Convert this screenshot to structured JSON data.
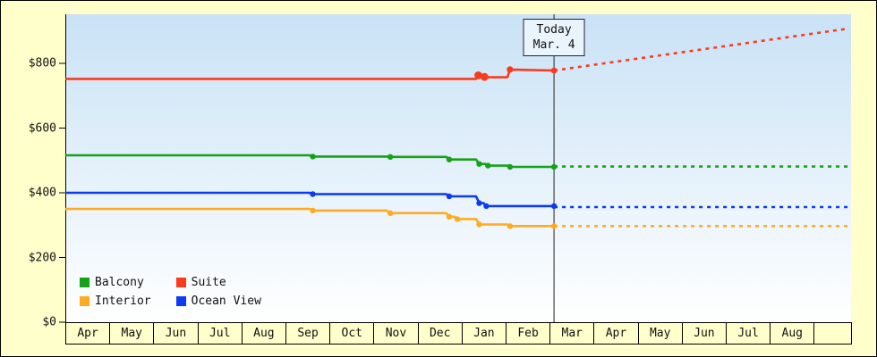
{
  "colors": {
    "page_background": "#ffffcc",
    "plot_gradient_top": "#c9e2f6",
    "plot_gradient_bottom": "#ffffff",
    "axis": "#000000",
    "today_line": "#444444",
    "today_box_background": "#e9f4fd"
  },
  "chart_data": {
    "type": "line",
    "title": "",
    "xlabel": "",
    "ylabel": "",
    "grid": false,
    "legend_position": "bottom-left",
    "y_axis": {
      "ticks": [
        {
          "label": "$0",
          "value": 0
        },
        {
          "label": "$200",
          "value": 200
        },
        {
          "label": "$400",
          "value": 400
        },
        {
          "label": "$600",
          "value": 600
        },
        {
          "label": "$800",
          "value": 800
        }
      ],
      "range": [
        0,
        952
      ]
    },
    "x_axis": {
      "months": [
        "Apr",
        "May",
        "Jun",
        "Jul",
        "Aug",
        "Sep",
        "Oct",
        "Nov",
        "Dec",
        "Jan",
        "Feb",
        "Mar",
        "Apr",
        "May",
        "Jun",
        "Jul",
        "Aug"
      ]
    },
    "today": {
      "month_position": 11.1,
      "label_line1": "Today",
      "label_line2": "Mar. 4"
    },
    "series": [
      {
        "name": "Balcony",
        "color": "#16a216",
        "history": [
          [
            0,
            516
          ],
          [
            5.55,
            516
          ],
          [
            5.62,
            512
          ],
          [
            7.3,
            512
          ],
          [
            7.38,
            511
          ],
          [
            8.65,
            511
          ],
          [
            8.72,
            503
          ],
          [
            9.33,
            503
          ],
          [
            9.4,
            489
          ],
          [
            9.54,
            489
          ],
          [
            9.6,
            484
          ],
          [
            10.04,
            484
          ],
          [
            10.1,
            480
          ],
          [
            11.1,
            480
          ]
        ],
        "markers": [
          [
            5.62,
            512
          ],
          [
            7.38,
            511
          ],
          [
            8.72,
            503
          ],
          [
            9.4,
            489
          ],
          [
            9.6,
            484
          ],
          [
            10.1,
            480
          ],
          [
            11.1,
            480
          ]
        ],
        "forecast": [
          [
            11.1,
            481
          ],
          [
            17.8,
            481
          ]
        ]
      },
      {
        "name": "Suite",
        "color": "#fb3a1c",
        "history": [
          [
            0,
            752
          ],
          [
            9.33,
            752
          ],
          [
            9.38,
            764
          ],
          [
            9.5,
            764
          ],
          [
            9.56,
            757
          ],
          [
            10.04,
            757
          ],
          [
            10.1,
            781
          ],
          [
            11.1,
            778
          ]
        ],
        "markers": [
          [
            9.38,
            763,
            4.4
          ],
          [
            9.52,
            758,
            4.4
          ],
          [
            10.1,
            781,
            3.6
          ],
          [
            11.1,
            778,
            3.4
          ]
        ],
        "forecast": [
          [
            11.1,
            778
          ],
          [
            17.8,
            908
          ]
        ]
      },
      {
        "name": "Interior",
        "color": "#ffab1f",
        "history": [
          [
            0,
            350
          ],
          [
            5.55,
            350
          ],
          [
            5.62,
            345
          ],
          [
            7.3,
            345
          ],
          [
            7.38,
            337
          ],
          [
            8.65,
            337
          ],
          [
            8.72,
            326
          ],
          [
            8.84,
            326
          ],
          [
            8.9,
            319
          ],
          [
            9.33,
            319
          ],
          [
            9.4,
            302
          ],
          [
            10.04,
            302
          ],
          [
            10.1,
            297
          ],
          [
            11.1,
            297
          ]
        ],
        "markers": [
          [
            5.62,
            345
          ],
          [
            7.38,
            337
          ],
          [
            8.72,
            326
          ],
          [
            8.9,
            319
          ],
          [
            9.4,
            302
          ],
          [
            10.1,
            297
          ],
          [
            11.1,
            297
          ]
        ],
        "forecast": [
          [
            11.1,
            297
          ],
          [
            17.8,
            297
          ]
        ]
      },
      {
        "name": "Ocean View",
        "color": "#0c3bf0",
        "history": [
          [
            0,
            400
          ],
          [
            5.55,
            400
          ],
          [
            5.62,
            396
          ],
          [
            8.65,
            396
          ],
          [
            8.72,
            389
          ],
          [
            9.33,
            389
          ],
          [
            9.4,
            368
          ],
          [
            9.5,
            368
          ],
          [
            9.56,
            359
          ],
          [
            11.1,
            359
          ]
        ],
        "markers": [
          [
            5.62,
            396
          ],
          [
            8.72,
            389
          ],
          [
            9.4,
            368
          ],
          [
            9.56,
            359
          ],
          [
            11.1,
            359
          ]
        ],
        "forecast": [
          [
            11.1,
            356
          ],
          [
            17.8,
            356
          ]
        ]
      }
    ]
  }
}
